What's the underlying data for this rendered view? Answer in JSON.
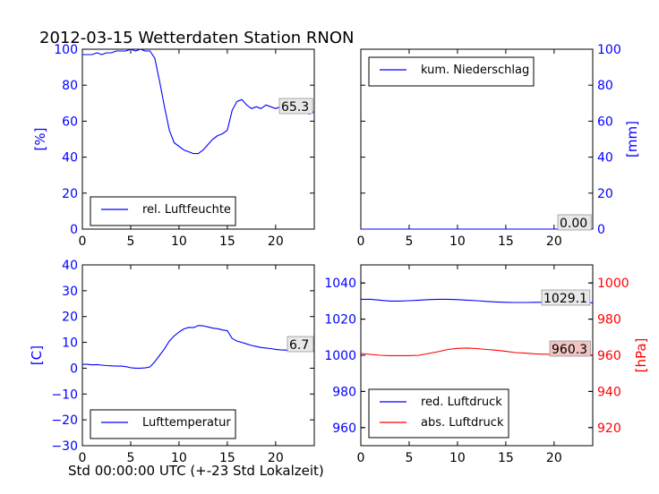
{
  "title": "2012-03-15 Wetterdaten Station RNON",
  "xlabel": "Std 00:00:00 UTC (+-23 Std Lokalzeit)",
  "colors": {
    "blue": "#0000ff",
    "red": "#ff0000",
    "axis": "#000000",
    "ann_gray": "#e8e8e8",
    "ann_red": "#f2c4c4"
  },
  "chart_data": [
    {
      "type": "line",
      "position": "top-left",
      "ylabel": "[%]",
      "xlim": [
        0,
        24
      ],
      "ylim": [
        0,
        100
      ],
      "xticks": [
        0,
        5,
        10,
        15,
        20
      ],
      "yticks": [
        0,
        20,
        40,
        60,
        80,
        100
      ],
      "legend": "bottom-left",
      "annotation": "65.3",
      "series": [
        {
          "name": "rel. Luftfeuchte",
          "color": "#0000ff",
          "x": [
            0,
            0.5,
            1,
            1.5,
            2,
            2.5,
            3,
            3.5,
            4,
            4.5,
            5,
            5.5,
            6,
            6.5,
            7,
            7.5,
            8,
            8.5,
            9,
            9.5,
            10,
            10.5,
            11,
            11.5,
            12,
            12.5,
            13,
            13.5,
            14,
            14.5,
            15,
            15.5,
            16,
            16.5,
            17,
            17.5,
            18,
            18.5,
            19,
            19.5,
            20,
            20.5,
            21,
            21.5,
            22,
            22.5,
            23,
            23.5,
            24
          ],
          "y": [
            97,
            97,
            97,
            98,
            97,
            98,
            98,
            99,
            99,
            99,
            100,
            99,
            100,
            99,
            99,
            95,
            82,
            68,
            55,
            48,
            46,
            44,
            43,
            42,
            42,
            44,
            47,
            50,
            52,
            53,
            55,
            66,
            71,
            72,
            69,
            67,
            68,
            67,
            69,
            68,
            67,
            68,
            67,
            66,
            67,
            66,
            65,
            64,
            65.3
          ]
        }
      ]
    },
    {
      "type": "line",
      "position": "top-right",
      "ylabel": "[mm]",
      "xlim": [
        0,
        24
      ],
      "ylim": [
        0,
        100
      ],
      "xticks": [
        0,
        5,
        10,
        15,
        20
      ],
      "yticks": [
        0,
        20,
        40,
        60,
        80,
        100
      ],
      "legend": "top-left",
      "annotation": "0.00",
      "series": [
        {
          "name": "kum. Niederschlag",
          "color": "#0000ff",
          "x": [
            0,
            24
          ],
          "y": [
            0,
            0
          ]
        }
      ]
    },
    {
      "type": "line",
      "position": "bottom-left",
      "ylabel": "[C]",
      "xlim": [
        0,
        24
      ],
      "ylim": [
        -30,
        40
      ],
      "xticks": [
        0,
        5,
        10,
        15,
        20
      ],
      "yticks": [
        -30,
        -20,
        -10,
        0,
        10,
        20,
        30,
        40
      ],
      "legend": "bottom-left",
      "annotation": "6.7",
      "series": [
        {
          "name": "Lufttemperatur",
          "color": "#0000ff",
          "x": [
            0,
            0.5,
            1,
            1.5,
            2,
            2.5,
            3,
            3.5,
            4,
            4.5,
            5,
            5.5,
            6,
            6.5,
            7,
            7.5,
            8,
            8.5,
            9,
            9.5,
            10,
            10.5,
            11,
            11.5,
            12,
            12.5,
            13,
            13.5,
            14,
            14.5,
            15,
            15.5,
            16,
            16.5,
            17,
            17.5,
            18,
            18.5,
            19,
            19.5,
            20,
            20.5,
            21,
            21.5,
            22,
            22.5,
            23,
            23.5,
            24
          ],
          "y": [
            1.5,
            1.5,
            1.3,
            1.4,
            1.2,
            1.0,
            0.9,
            0.8,
            0.8,
            0.6,
            0.2,
            0.0,
            0.0,
            0.1,
            0.5,
            2.5,
            5.0,
            7.5,
            10.5,
            12.5,
            14.0,
            15.2,
            15.8,
            15.7,
            16.5,
            16.4,
            16.0,
            15.5,
            15.3,
            14.8,
            14.5,
            11.5,
            10.5,
            10.0,
            9.4,
            8.8,
            8.4,
            8.0,
            7.8,
            7.6,
            7.3,
            7.1,
            7.0,
            6.9,
            6.9,
            6.8,
            6.8,
            6.7,
            6.7
          ]
        }
      ]
    },
    {
      "type": "line",
      "position": "bottom-right",
      "ylabel": "[hPa]",
      "xlim": [
        0,
        24
      ],
      "ylim": [
        950,
        1050
      ],
      "yticks": [
        960,
        980,
        1000,
        1020,
        1040
      ],
      "y2lim": [
        910,
        1010
      ],
      "y2ticks": [
        920,
        940,
        960,
        980,
        1000
      ],
      "xticks": [
        0,
        5,
        10,
        15,
        20
      ],
      "legend": "bottom-left",
      "annotations": [
        "1029.1",
        "960.3"
      ],
      "series": [
        {
          "name": "red. Luftdruck",
          "color": "#0000ff",
          "axis": "left",
          "x": [
            0,
            1,
            2,
            3,
            4,
            5,
            6,
            7,
            8,
            9,
            10,
            11,
            12,
            13,
            14,
            15,
            16,
            17,
            18,
            19,
            20,
            21,
            22,
            23,
            24
          ],
          "y": [
            1031,
            1031,
            1030.5,
            1030,
            1030,
            1030.2,
            1030.5,
            1030.8,
            1031,
            1031,
            1030.8,
            1030.5,
            1030.2,
            1029.8,
            1029.5,
            1029.3,
            1029.2,
            1029.2,
            1029.3,
            1029.3,
            1029.2,
            1029.2,
            1029.1,
            1029.1,
            1029.1
          ]
        },
        {
          "name": "abs. Luftdruck",
          "color": "#ff0000",
          "axis": "right",
          "x": [
            0,
            1,
            2,
            3,
            4,
            5,
            6,
            7,
            8,
            9,
            10,
            11,
            12,
            13,
            14,
            15,
            16,
            17,
            18,
            19,
            20,
            21,
            22,
            23,
            24
          ],
          "y": [
            961,
            960.5,
            960,
            959.8,
            959.8,
            959.8,
            960,
            961,
            962,
            963.2,
            963.8,
            964,
            963.7,
            963.2,
            962.8,
            962.2,
            961.5,
            961.2,
            960.8,
            960.6,
            960.5,
            960.4,
            960.3,
            960.3,
            960.3
          ]
        }
      ]
    }
  ]
}
